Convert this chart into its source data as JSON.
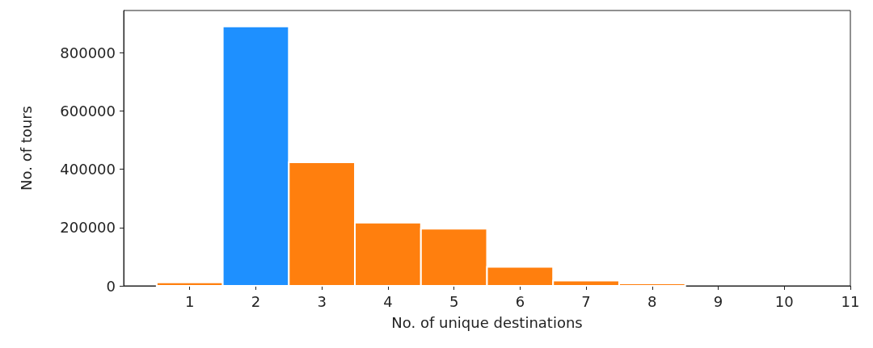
{
  "chart_data": {
    "type": "histogram",
    "xlabel": "No. of unique destinations",
    "ylabel": "No. of tours",
    "bins": [
      0.5,
      1.5,
      2.5,
      3.5,
      4.5,
      5.5,
      6.5,
      7.5,
      8.5
    ],
    "values": [
      12000,
      890000,
      424000,
      217000,
      196000,
      65000,
      18000,
      8000
    ],
    "colors": [
      "#ff7f0e",
      "#1e90ff",
      "#ff7f0e",
      "#ff7f0e",
      "#ff7f0e",
      "#ff7f0e",
      "#ff7f0e",
      "#ff7f0e"
    ],
    "xlim": [
      0,
      11
    ],
    "xticks": [
      1,
      2,
      3,
      4,
      5,
      6,
      7,
      8,
      9,
      10,
      11
    ],
    "ylim": [
      0,
      945000
    ],
    "yticks": [
      0,
      200000,
      400000,
      600000,
      800000
    ],
    "grid": false
  }
}
